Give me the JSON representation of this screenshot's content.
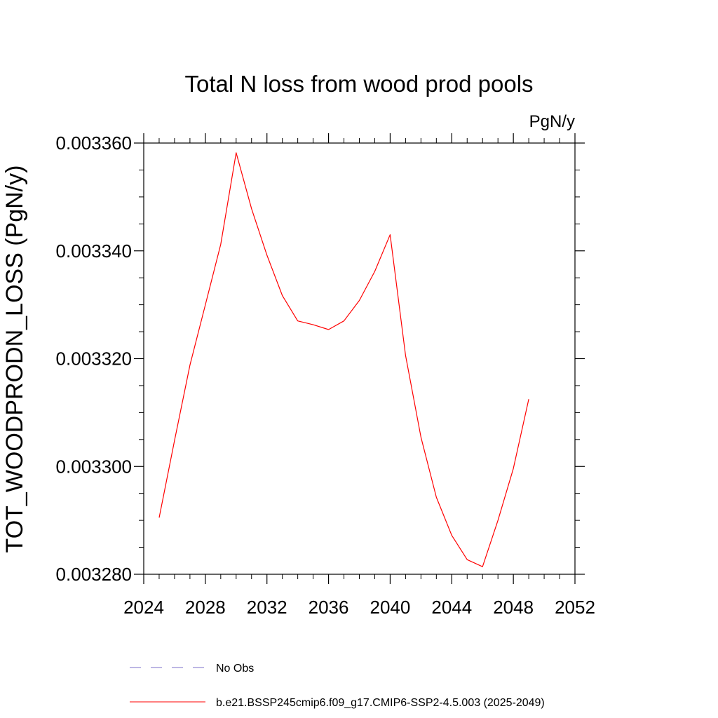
{
  "chart_data": {
    "type": "line",
    "title": "Total N loss from wood prod pools",
    "units": "PgN/y",
    "ylabel": "TOT_WOODPRODN_LOSS  (PgN/y)",
    "xlabel": "",
    "xlim": [
      2024,
      2052
    ],
    "ylim": [
      0.00328,
      0.00336
    ],
    "x_ticks": [
      2024,
      2028,
      2032,
      2036,
      2040,
      2044,
      2048,
      2052
    ],
    "x_tick_labels": [
      "2024",
      "2028",
      "2032",
      "2036",
      "2040",
      "2044",
      "2048",
      "2052"
    ],
    "y_ticks": [
      0.00328,
      0.0033,
      0.00332,
      0.00334,
      0.00336
    ],
    "y_tick_labels": [
      "0.003280",
      "0.003300",
      "0.003320",
      "0.003340",
      "0.003360"
    ],
    "grid": false,
    "legend_position": "bottom",
    "series": [
      {
        "name": "b.e21.BSSP245cmip6.f09_g17.CMIP6-SSP2-4.5.003 (2025-2049)",
        "color": "#ff0000",
        "x": [
          2025,
          2026,
          2027,
          2028,
          2029,
          2030,
          2031,
          2032,
          2033,
          2034,
          2035,
          2036,
          2037,
          2038,
          2039,
          2040,
          2041,
          2042,
          2043,
          2044,
          2045,
          2046,
          2047,
          2048,
          2049
        ],
        "y": [
          0.0032905,
          0.0033048,
          0.0033188,
          0.00333,
          0.0033412,
          0.0033582,
          0.0033478,
          0.0033392,
          0.0033317,
          0.003327,
          0.0033263,
          0.0033254,
          0.003327,
          0.0033308,
          0.0033362,
          0.003343,
          0.0033206,
          0.0033054,
          0.0032943,
          0.0032872,
          0.0032827,
          0.0032814,
          0.00329,
          0.0032996,
          0.0033125
        ]
      }
    ],
    "legend": [
      {
        "label": "No Obs",
        "color": "#7b6fc9",
        "style": "dashed"
      },
      {
        "label": "b.e21.BSSP245cmip6.f09_g17.CMIP6-SSP2-4.5.003 (2025-2049)",
        "color": "#ff0000",
        "style": "solid"
      }
    ]
  }
}
